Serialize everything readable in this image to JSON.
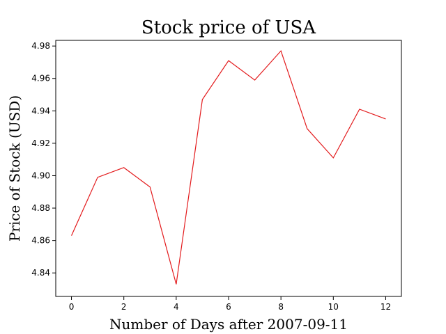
{
  "chart_data": {
    "type": "line",
    "title": "Stock price of USA",
    "xlabel": "Number of Days after 2007-09-11",
    "ylabel": "Price of Stock (USD)",
    "xlim": [
      -0.6,
      12.6
    ],
    "ylim": [
      4.8255,
      4.9835
    ],
    "xticks": [
      0,
      2,
      4,
      6,
      8,
      10,
      12
    ],
    "yticks": [
      4.84,
      4.86,
      4.88,
      4.9,
      4.92,
      4.94,
      4.96,
      4.98
    ],
    "ytick_labels": [
      "4.84",
      "4.86",
      "4.88",
      "4.90",
      "4.92",
      "4.94",
      "4.96",
      "4.98"
    ],
    "grid": false,
    "series": [
      {
        "color": "#e31a1c",
        "x": [
          0,
          1,
          2,
          3,
          4,
          5,
          6,
          7,
          8,
          9,
          10,
          11,
          12
        ],
        "y": [
          4.863,
          4.899,
          4.905,
          4.893,
          4.833,
          4.947,
          4.971,
          4.959,
          4.977,
          4.929,
          4.911,
          4.941,
          4.935
        ]
      }
    ]
  }
}
